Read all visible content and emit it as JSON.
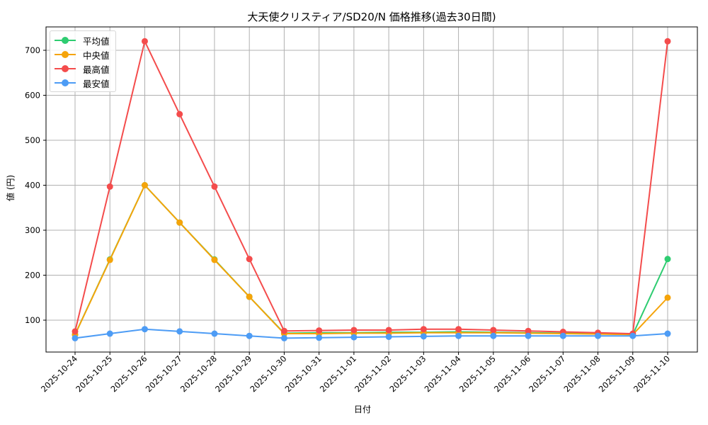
{
  "chart_data": {
    "type": "line",
    "title": "大天使クリスティア/SD20/N 価格推移(過去30日間)",
    "xlabel": "日付",
    "ylabel": "値 (円)",
    "ylim": [
      25,
      750
    ],
    "yticks": [
      100,
      200,
      300,
      400,
      500,
      600,
      700
    ],
    "grid": true,
    "legend_position": "upper left",
    "categories": [
      "2025-10-24",
      "2025-10-25",
      "2025-10-26",
      "2025-10-27",
      "2025-10-28",
      "2025-10-29",
      "2025-10-30",
      "2025-10-31",
      "2025-11-01",
      "2025-11-02",
      "2025-11-03",
      "2025-11-04",
      "2025-11-05",
      "2025-11-06",
      "2025-11-07",
      "2025-11-08",
      "2025-11-09",
      "2025-11-10"
    ],
    "series": [
      {
        "name": "平均値",
        "color": "#2ecc71",
        "values": [
          68,
          235,
          400,
          317,
          235,
          152,
          71,
          72,
          72,
          73,
          73,
          74,
          73,
          72,
          71,
          70,
          68,
          236
        ]
      },
      {
        "name": "中央値",
        "color": "#f5a40a",
        "values": [
          68,
          234,
          400,
          317,
          234,
          152,
          70,
          70,
          71,
          71,
          72,
          72,
          72,
          71,
          70,
          69,
          68,
          150
        ]
      },
      {
        "name": "最高値",
        "color": "#f44c4c",
        "values": [
          75,
          397,
          720,
          558,
          397,
          236,
          76,
          77,
          78,
          78,
          80,
          80,
          78,
          76,
          74,
          72,
          70,
          720
        ]
      },
      {
        "name": "最安値",
        "color": "#4d9cf5",
        "values": [
          60,
          70,
          80,
          75,
          70,
          65,
          60,
          61,
          62,
          63,
          64,
          65,
          65,
          65,
          65,
          65,
          65,
          70
        ]
      }
    ]
  },
  "legend": {
    "items": [
      {
        "label": "平均値",
        "color": "#2ecc71"
      },
      {
        "label": "中央値",
        "color": "#f5a40a"
      },
      {
        "label": "最高値",
        "color": "#f44c4c"
      },
      {
        "label": "最安値",
        "color": "#4d9cf5"
      }
    ]
  }
}
